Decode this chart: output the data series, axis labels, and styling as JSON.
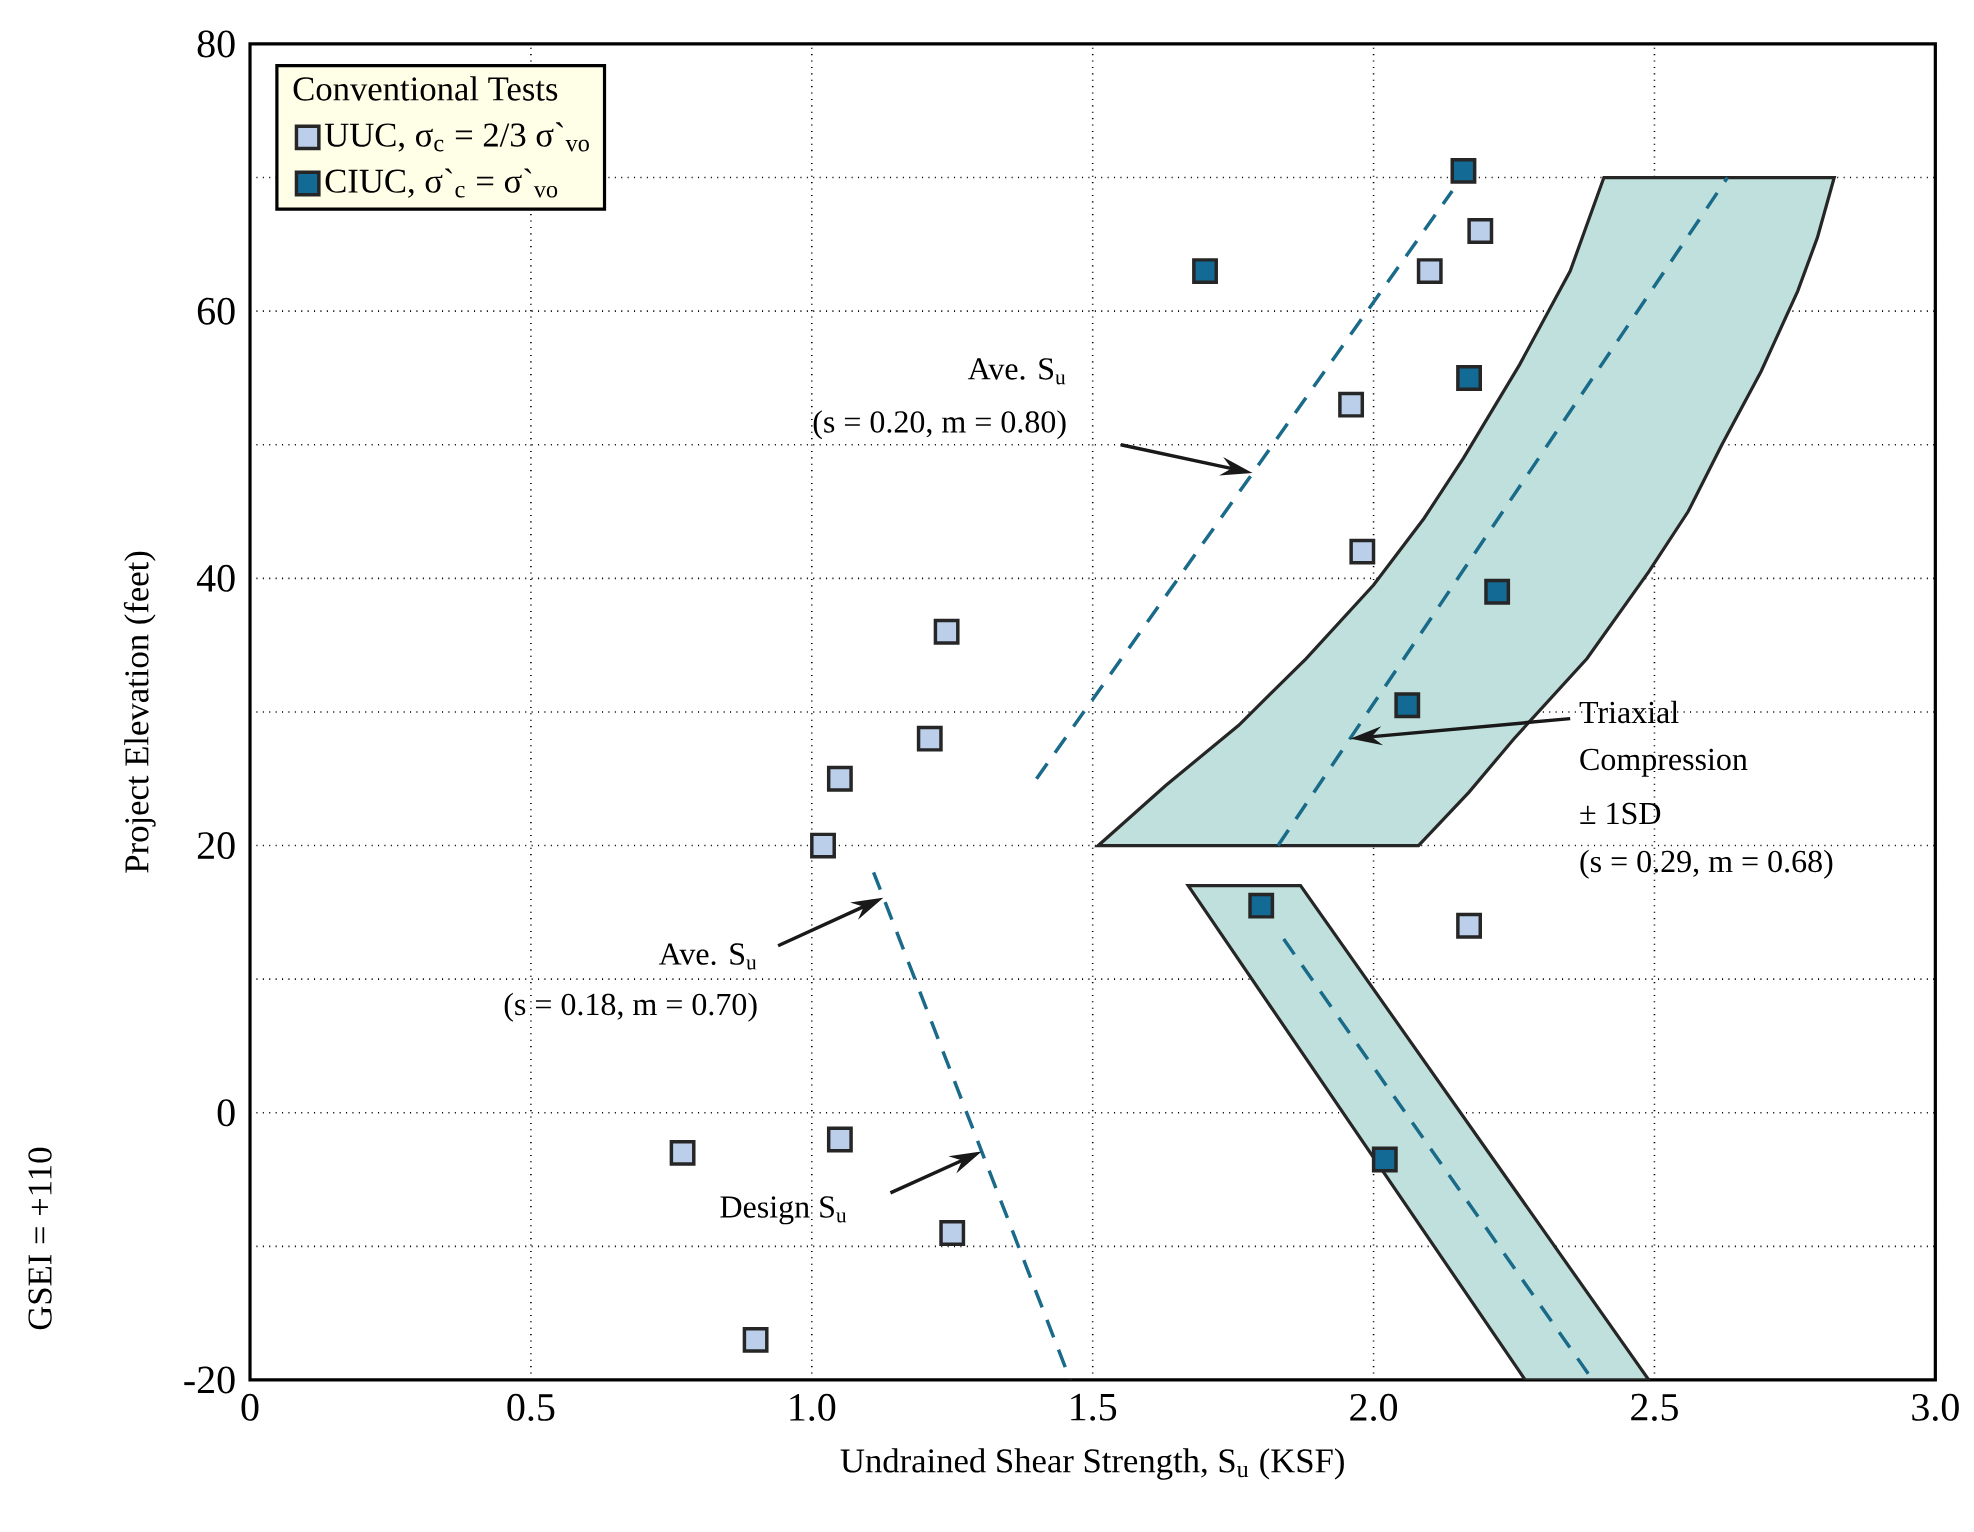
{
  "chart_data": {
    "type": "scatter",
    "xlabel": "Undrained Shear Strength, S$_{u}$ (KSF)",
    "ylabel": "Project Elevation (feet)",
    "legend_title": "Conventional Tests",
    "xlim": [
      0,
      3
    ],
    "ylim": [
      -20,
      80
    ],
    "xticks": [
      0,
      0.5,
      {
        "value": 1,
        "label": "1.0"
      },
      1.5,
      {
        "value": 2,
        "label": "2.0"
      },
      2.5,
      {
        "value": 3,
        "label": "3.0"
      }
    ],
    "yticks": [
      -20,
      {
        "value": -10,
        "label": null
      },
      0,
      {
        "value": 10,
        "label": null
      },
      20,
      {
        "value": 30,
        "label": null
      },
      40,
      {
        "value": 50,
        "label": null
      },
      60,
      {
        "value": 70,
        "label": null
      },
      80
    ],
    "grid": true,
    "legend": "top left",
    "series": [
      {
        "type": "area",
        "color": "#bfe0dc",
        "x": [
          1.51,
          1.63,
          1.76,
          1.88,
          2.0,
          2.09,
          2.16,
          2.26,
          2.35,
          2.41,
          2.82,
          2.79,
          2.755,
          2.69,
          2.62,
          2.56,
          2.49,
          2.38,
          2.25,
          2.17,
          2.08
        ],
        "values": [
          20,
          24.5,
          29,
          34,
          39.5,
          44.5,
          49,
          56,
          63,
          70,
          70,
          65.5,
          61.5,
          55.5,
          50,
          45,
          40.5,
          34,
          28,
          24,
          20
        ]
      },
      {
        "type": "area",
        "color": "#bfe0dc",
        "x": [
          1.67,
          1.87,
          2.49,
          2.27
        ],
        "values": [
          17,
          17,
          -20,
          -20
        ]
      },
      {
        "type": "line",
        "color": "#1a6a8a",
        "line_style": "dashed",
        "x": [
          1.4,
          2.14
        ],
        "values": [
          25,
          69
        ]
      },
      {
        "type": "line",
        "color": "#1a6a8a",
        "line_style": "dashed",
        "x": [
          1.11,
          1.46
        ],
        "values": [
          18,
          -20
        ]
      },
      {
        "type": "line",
        "color": "#1a6a8a",
        "line_style": "dashed",
        "x": [
          1.83,
          2.63
        ],
        "values": [
          20,
          70
        ]
      },
      {
        "type": "line",
        "color": "#1a6a8a",
        "line_style": "dashed",
        "x": [
          1.84,
          2.39
        ],
        "values": [
          13,
          -20
        ]
      },
      {
        "name": "UUC, σ$_{c}$ = 2/3 σ`$_{vo}$",
        "color": "#bccfea",
        "marker": "square",
        "x": [
          2.19,
          2.1,
          1.96,
          1.98,
          1.24,
          1.21,
          1.05,
          1.02,
          2.17,
          1.05,
          1.25,
          0.77,
          0.9
        ],
        "values": [
          66,
          63,
          53,
          42,
          36,
          28,
          25,
          20,
          14,
          -2,
          -9,
          -3,
          -17
        ]
      },
      {
        "name": "CIUC, σ`$_{c}$ = σ`$_{vo}$",
        "color": "#136a94",
        "marker": "square",
        "x": [
          2.16,
          1.7,
          2.17,
          2.22,
          2.06,
          1.8,
          2.02
        ],
        "values": [
          70.5,
          63,
          55,
          39,
          30.5,
          15.5,
          -3.5
        ]
      }
    ],
    "annotations": [
      "Ave. S$_{u}$",
      "(s = 0.20, m = 0.80)",
      "Triaxial",
      "Compression",
      "± 1SD",
      "(s = 0.29, m = 0.68)",
      "Ave. S$_{u}$",
      "(s = 0.18, m = 0.70)",
      "Design S$_{u}$",
      "GSEI = +110"
    ]
  }
}
